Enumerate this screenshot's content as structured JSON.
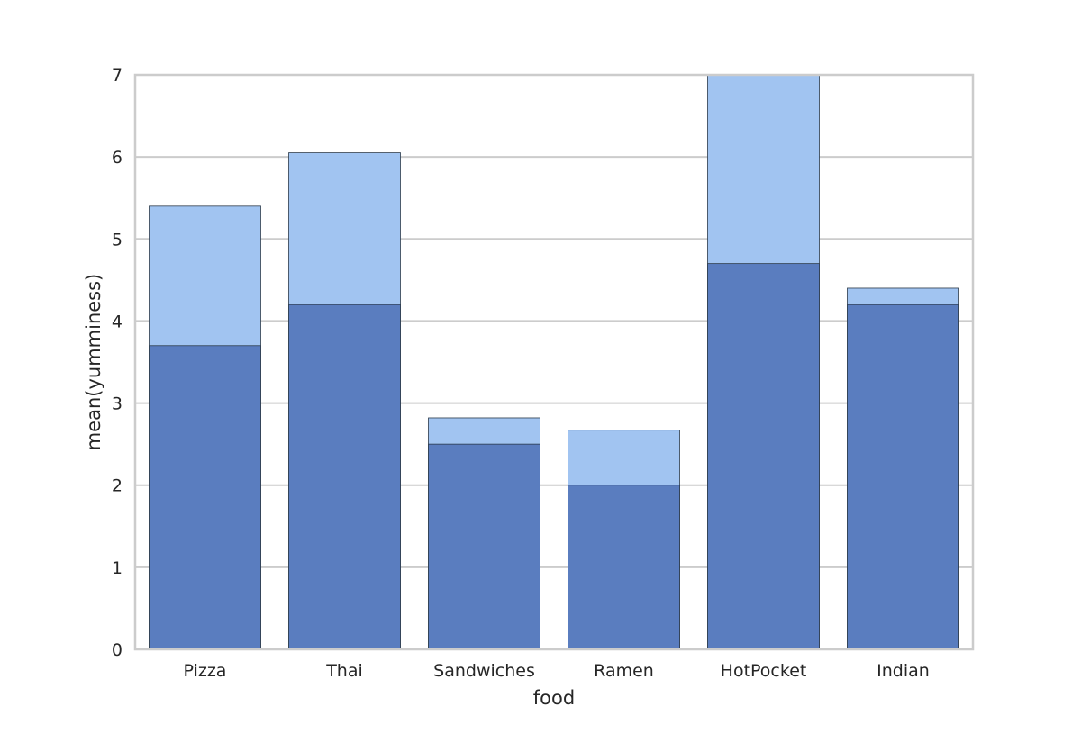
{
  "chart_data": {
    "type": "bar",
    "xlabel": "food",
    "ylabel": "mean(yumminess)",
    "ylim": [
      0,
      7
    ],
    "yticks": [
      0,
      1,
      2,
      3,
      4,
      5,
      6,
      7
    ],
    "grid": true,
    "categories": [
      "Pizza",
      "Thai",
      "Sandwiches",
      "Ramen",
      "HotPocket",
      "Indian"
    ],
    "series": [
      {
        "color": "#a1c4f1",
        "values": [
          5.4,
          6.05,
          2.82,
          2.67,
          7.0,
          4.4
        ]
      },
      {
        "color": "#5a7dbf",
        "values": [
          3.7,
          4.2,
          2.5,
          2.0,
          4.7,
          4.2
        ]
      }
    ]
  }
}
